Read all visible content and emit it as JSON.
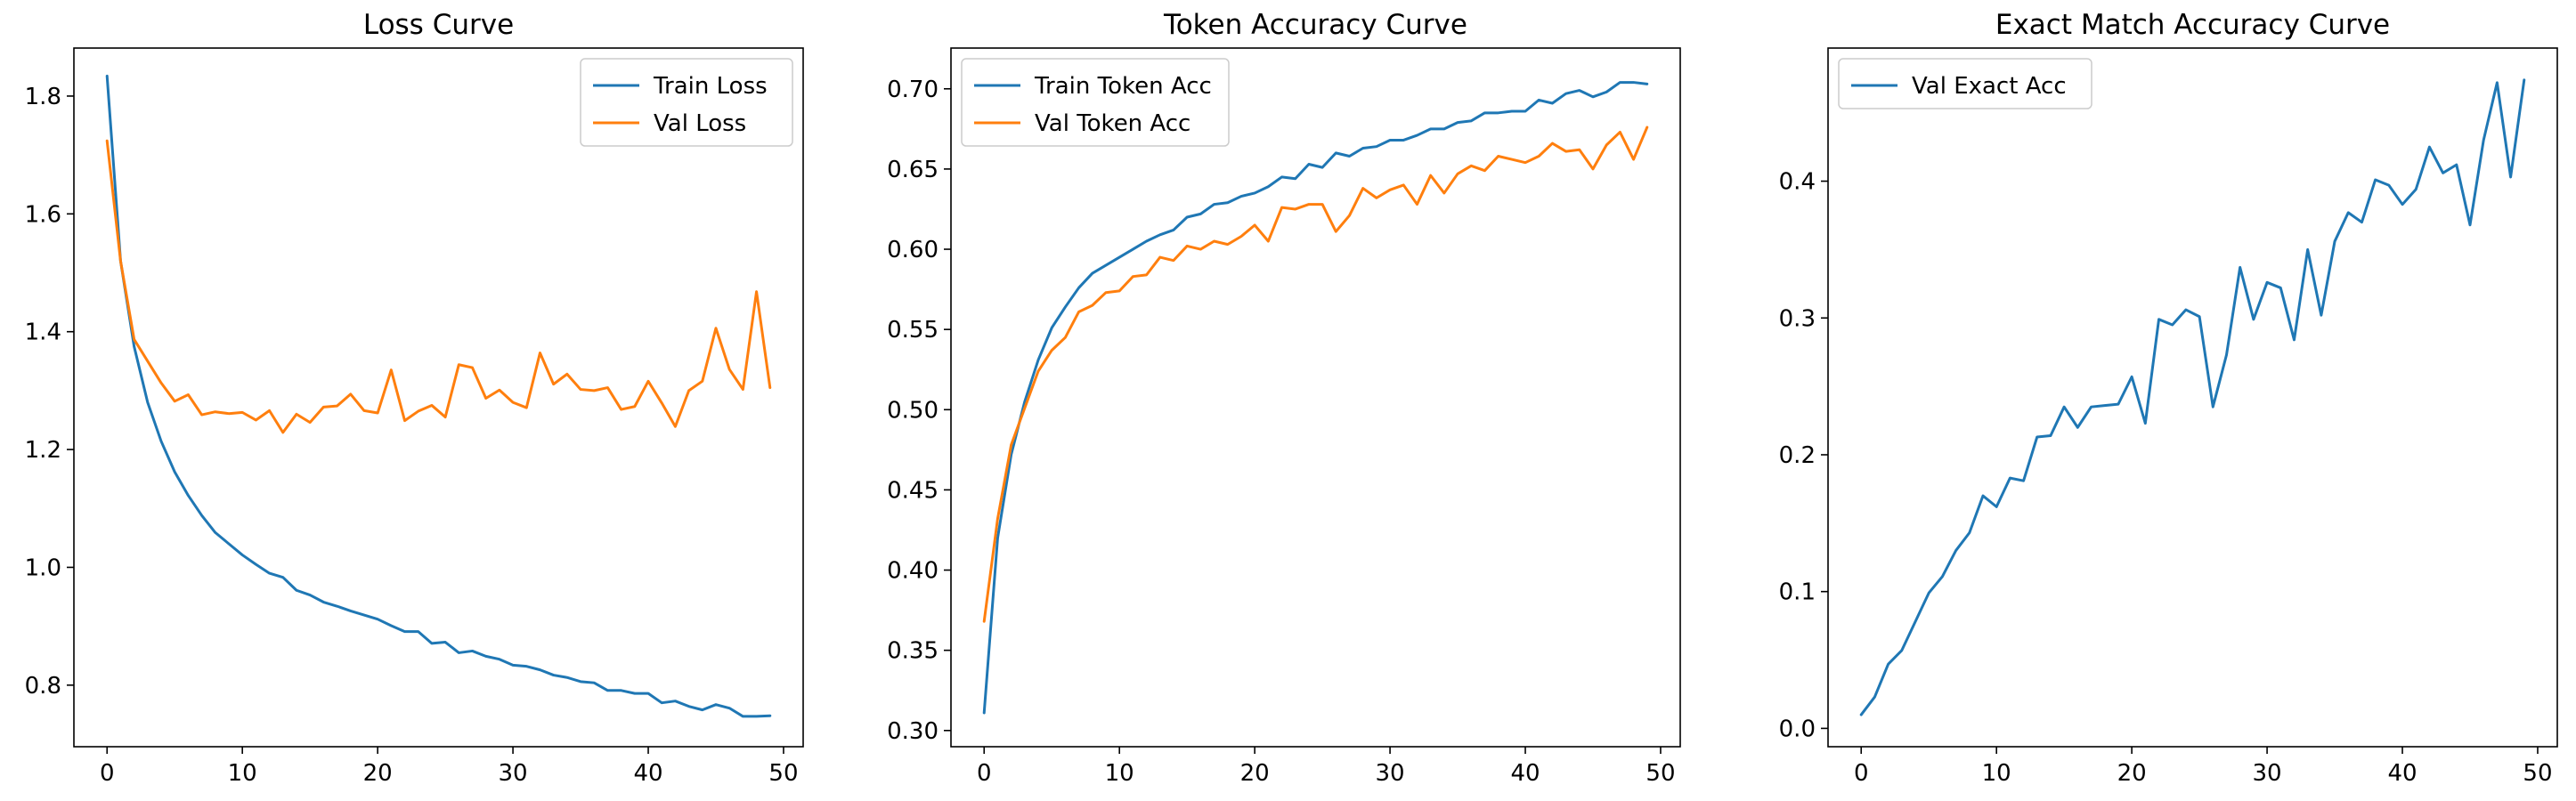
{
  "charts": [
    {
      "type": "line",
      "title": "Loss Curve",
      "xlabel": "",
      "ylabel": "",
      "xlim": [
        -2.45,
        51.45
      ],
      "ylim": [
        0.6955,
        1.8815
      ],
      "xticks": [
        0,
        10,
        20,
        30,
        40,
        50
      ],
      "yticks": [
        0.8,
        1.0,
        1.2,
        1.4,
        1.6,
        1.8
      ],
      "ytick_decimals": 1,
      "grid": false,
      "legend_position": "upper right",
      "series": [
        {
          "name": "Train Loss",
          "color": "#1f77b4",
          "x": [
            0,
            1,
            2,
            3,
            4,
            5,
            6,
            7,
            8,
            9,
            10,
            11,
            12,
            13,
            14,
            15,
            16,
            17,
            18,
            19,
            20,
            21,
            22,
            23,
            24,
            25,
            26,
            27,
            28,
            29,
            30,
            31,
            32,
            33,
            34,
            35,
            36,
            37,
            38,
            39,
            40,
            41,
            42,
            43,
            44,
            45,
            46,
            47,
            48,
            49
          ],
          "values": [
            1.834,
            1.52,
            1.375,
            1.28,
            1.214,
            1.162,
            1.122,
            1.088,
            1.059,
            1.04,
            1.021,
            1.005,
            0.99,
            0.983,
            0.961,
            0.953,
            0.941,
            0.934,
            0.926,
            0.919,
            0.912,
            0.901,
            0.891,
            0.891,
            0.871,
            0.873,
            0.855,
            0.858,
            0.849,
            0.844,
            0.834,
            0.832,
            0.826,
            0.817,
            0.813,
            0.806,
            0.804,
            0.791,
            0.791,
            0.786,
            0.786,
            0.77,
            0.773,
            0.764,
            0.758,
            0.767,
            0.761,
            0.747,
            0.747,
            0.748
          ]
        },
        {
          "name": "Val Loss",
          "color": "#ff7f0e",
          "x": [
            0,
            1,
            2,
            3,
            4,
            5,
            6,
            7,
            8,
            9,
            10,
            11,
            12,
            13,
            14,
            15,
            16,
            17,
            18,
            19,
            20,
            21,
            22,
            23,
            24,
            25,
            26,
            27,
            28,
            29,
            30,
            31,
            32,
            33,
            34,
            35,
            36,
            37,
            38,
            39,
            40,
            41,
            42,
            43,
            44,
            45,
            46,
            47,
            48,
            49
          ],
          "values": [
            1.724,
            1.52,
            1.387,
            1.35,
            1.313,
            1.282,
            1.293,
            1.259,
            1.264,
            1.261,
            1.263,
            1.25,
            1.266,
            1.229,
            1.26,
            1.246,
            1.272,
            1.274,
            1.294,
            1.266,
            1.262,
            1.335,
            1.249,
            1.265,
            1.275,
            1.255,
            1.344,
            1.339,
            1.287,
            1.301,
            1.28,
            1.271,
            1.364,
            1.311,
            1.328,
            1.302,
            1.3,
            1.305,
            1.268,
            1.273,
            1.316,
            1.279,
            1.239,
            1.3,
            1.316,
            1.406,
            1.336,
            1.302,
            1.468,
            1.305
          ]
        }
      ]
    },
    {
      "type": "line",
      "title": "Token Accuracy Curve",
      "xlabel": "",
      "ylabel": "",
      "xlim": [
        -2.45,
        51.45
      ],
      "ylim": [
        0.2899,
        0.7254
      ],
      "xticks": [
        0,
        10,
        20,
        30,
        40,
        50
      ],
      "yticks": [
        0.3,
        0.35,
        0.4,
        0.45,
        0.5,
        0.55,
        0.6,
        0.65,
        0.7
      ],
      "ytick_decimals": 2,
      "grid": false,
      "legend_position": "upper left",
      "series": [
        {
          "name": "Train Token Acc",
          "color": "#1f77b4",
          "x": [
            0,
            1,
            2,
            3,
            4,
            5,
            6,
            7,
            8,
            9,
            10,
            11,
            12,
            13,
            14,
            15,
            16,
            17,
            18,
            19,
            20,
            21,
            22,
            23,
            24,
            25,
            26,
            27,
            28,
            29,
            30,
            31,
            32,
            33,
            34,
            35,
            36,
            37,
            38,
            39,
            40,
            41,
            42,
            43,
            44,
            45,
            46,
            47,
            48,
            49
          ],
          "values": [
            0.311,
            0.42,
            0.472,
            0.505,
            0.531,
            0.551,
            0.564,
            0.576,
            0.585,
            0.59,
            0.595,
            0.6,
            0.605,
            0.609,
            0.612,
            0.62,
            0.622,
            0.628,
            0.629,
            0.633,
            0.635,
            0.639,
            0.645,
            0.644,
            0.653,
            0.651,
            0.66,
            0.658,
            0.663,
            0.664,
            0.668,
            0.668,
            0.671,
            0.675,
            0.675,
            0.679,
            0.68,
            0.685,
            0.685,
            0.686,
            0.686,
            0.693,
            0.691,
            0.697,
            0.699,
            0.695,
            0.698,
            0.704,
            0.704,
            0.703
          ]
        },
        {
          "name": "Val Token Acc",
          "color": "#ff7f0e",
          "x": [
            0,
            1,
            2,
            3,
            4,
            5,
            6,
            7,
            8,
            9,
            10,
            11,
            12,
            13,
            14,
            15,
            16,
            17,
            18,
            19,
            20,
            21,
            22,
            23,
            24,
            25,
            26,
            27,
            28,
            29,
            30,
            31,
            32,
            33,
            34,
            35,
            36,
            37,
            38,
            39,
            40,
            41,
            42,
            43,
            44,
            45,
            46,
            47,
            48,
            49
          ],
          "values": [
            0.368,
            0.432,
            0.478,
            0.501,
            0.524,
            0.537,
            0.545,
            0.561,
            0.565,
            0.573,
            0.574,
            0.583,
            0.584,
            0.595,
            0.593,
            0.602,
            0.6,
            0.605,
            0.603,
            0.608,
            0.615,
            0.605,
            0.626,
            0.625,
            0.628,
            0.628,
            0.611,
            0.621,
            0.638,
            0.632,
            0.637,
            0.64,
            0.628,
            0.646,
            0.635,
            0.647,
            0.652,
            0.649,
            0.658,
            0.656,
            0.654,
            0.658,
            0.666,
            0.661,
            0.662,
            0.65,
            0.665,
            0.673,
            0.656,
            0.676
          ]
        }
      ]
    },
    {
      "type": "line",
      "title": "Exact Match Accuracy Curve",
      "xlabel": "",
      "ylabel": "",
      "xlim": [
        -2.45,
        51.45
      ],
      "ylim": [
        -0.0134,
        0.4973
      ],
      "xticks": [
        0,
        10,
        20,
        30,
        40,
        50
      ],
      "yticks": [
        0.0,
        0.1,
        0.2,
        0.3,
        0.4
      ],
      "ytick_decimals": 1,
      "grid": false,
      "legend_position": "upper left",
      "series": [
        {
          "name": "Val Exact Acc",
          "color": "#1f77b4",
          "x": [
            0,
            1,
            2,
            3,
            4,
            5,
            6,
            7,
            8,
            9,
            10,
            11,
            12,
            13,
            14,
            15,
            16,
            17,
            18,
            19,
            20,
            21,
            22,
            23,
            24,
            25,
            26,
            27,
            28,
            29,
            30,
            31,
            32,
            33,
            34,
            35,
            36,
            37,
            38,
            39,
            40,
            41,
            42,
            43,
            44,
            45,
            46,
            47,
            48,
            49
          ],
          "values": [
            0.01,
            0.023,
            0.047,
            0.057,
            0.078,
            0.099,
            0.111,
            0.13,
            0.143,
            0.17,
            0.162,
            0.183,
            0.181,
            0.213,
            0.214,
            0.235,
            0.22,
            0.235,
            0.236,
            0.237,
            0.257,
            0.223,
            0.299,
            0.295,
            0.306,
            0.301,
            0.235,
            0.273,
            0.337,
            0.299,
            0.326,
            0.322,
            0.284,
            0.35,
            0.302,
            0.356,
            0.377,
            0.37,
            0.401,
            0.397,
            0.383,
            0.394,
            0.425,
            0.406,
            0.412,
            0.368,
            0.43,
            0.472,
            0.403,
            0.474
          ]
        }
      ]
    }
  ]
}
